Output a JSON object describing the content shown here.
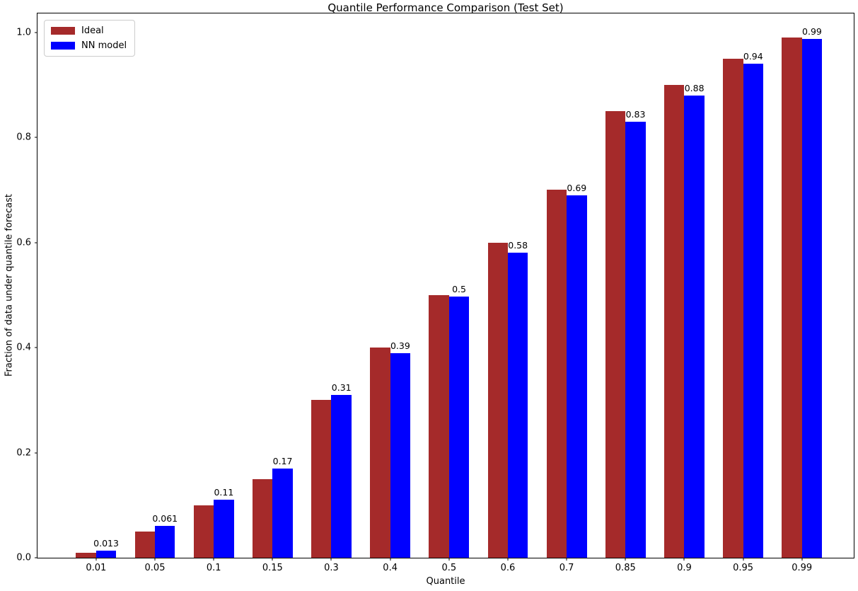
{
  "chart_data": {
    "type": "bar",
    "title": "Quantile Performance Comparison (Test Set)",
    "xlabel": "Quantile",
    "ylabel": "Fraction of data under quantile forecast",
    "categories": [
      "0.01",
      "0.05",
      "0.1",
      "0.15",
      "0.3",
      "0.4",
      "0.5",
      "0.6",
      "0.7",
      "0.85",
      "0.9",
      "0.95",
      "0.99"
    ],
    "series": [
      {
        "name": "Ideal",
        "color": "#A52A2A",
        "values": [
          0.01,
          0.05,
          0.1,
          0.15,
          0.3,
          0.4,
          0.5,
          0.6,
          0.7,
          0.85,
          0.9,
          0.95,
          0.99
        ]
      },
      {
        "name": "NN model",
        "color": "#0000FF",
        "values": [
          0.013,
          0.061,
          0.11,
          0.17,
          0.31,
          0.39,
          0.497,
          0.58,
          0.69,
          0.83,
          0.88,
          0.94,
          0.987
        ],
        "labels": [
          "0.013",
          "0.061",
          "0.11",
          "0.17",
          "0.31",
          "0.39",
          "0.5",
          "0.58",
          "0.69",
          "0.83",
          "0.88",
          "0.94",
          "0.99"
        ]
      }
    ],
    "yticks": [
      "0.0",
      "0.2",
      "0.4",
      "0.6",
      "0.8",
      "1.0"
    ],
    "ylim": [
      0,
      1.036
    ],
    "grid": false,
    "legend_position": "upper left",
    "axis_color": "#000000",
    "background_color": "#ffffff"
  }
}
